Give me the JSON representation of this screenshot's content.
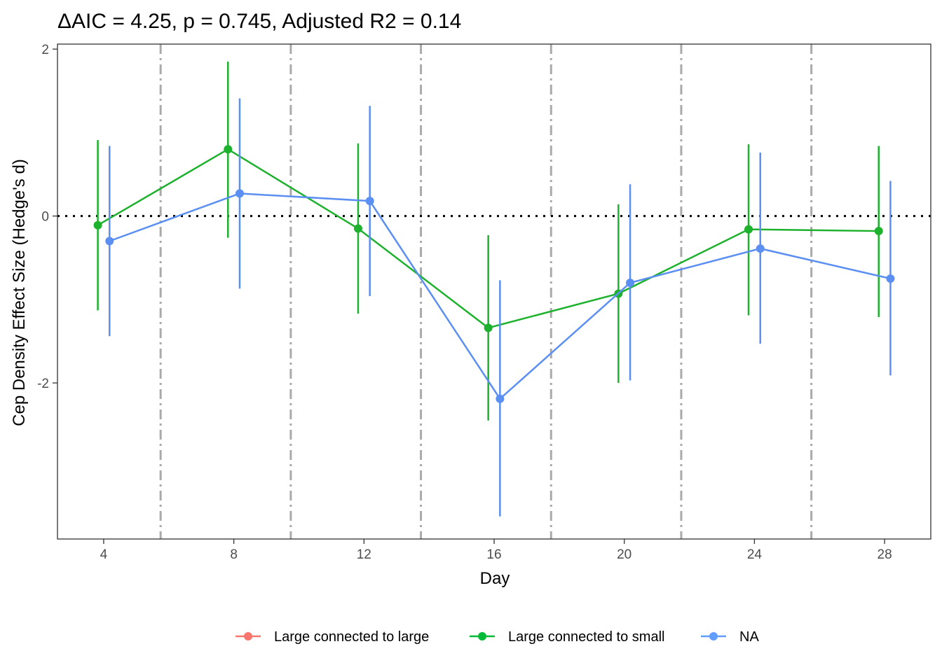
{
  "chart_data": {
    "type": "line",
    "title": "ΔAIC = 4.25, p = 0.745, Adjusted R2 = 0.14",
    "xlabel": "Day",
    "ylabel": "Cep Density Effect Size (Hedge's d)",
    "xlim": [
      2.58,
      29.42
    ],
    "ylim": [
      -3.87,
      2.06
    ],
    "x_ticks": [
      4,
      8,
      12,
      16,
      20,
      24,
      28
    ],
    "x_tick_labels": [
      "4",
      "8",
      "12",
      "16",
      "20",
      "24",
      "28"
    ],
    "y_ticks": [
      2,
      0,
      -2
    ],
    "y_tick_labels": [
      "2",
      "0",
      "-2"
    ],
    "reference_line": {
      "y": 0,
      "style": "dotted",
      "color": "#000000"
    },
    "vertical_lines": {
      "x": [
        5.75,
        9.75,
        13.75,
        17.75,
        21.75,
        25.75
      ],
      "style": "dashdot",
      "color": "#aaaaaa"
    },
    "grid": false,
    "legend_position": "bottom",
    "legend": [
      {
        "label": "Large connected to large",
        "color": "#F8766D"
      },
      {
        "label": "Large connected to small",
        "color": "#00BA38"
      },
      {
        "label": "NA",
        "color": "#619CFF"
      }
    ],
    "series": [
      {
        "name": "Large connected to small",
        "color": "#1db12d",
        "dodge": -0.18,
        "x": [
          4,
          8,
          12,
          16,
          20,
          24,
          28
        ],
        "y": [
          -0.11,
          0.8,
          -0.15,
          -1.34,
          -0.93,
          -0.16,
          -0.18
        ],
        "lower": [
          -1.13,
          -0.26,
          -1.17,
          -2.45,
          -2.0,
          -1.19,
          -1.21
        ],
        "upper": [
          0.91,
          1.85,
          0.87,
          -0.23,
          0.14,
          0.86,
          0.84
        ]
      },
      {
        "name": "NA",
        "color": "#5b8ff2",
        "dodge": 0.18,
        "x": [
          4,
          8,
          12,
          16,
          20,
          24,
          28
        ],
        "y": [
          -0.3,
          0.27,
          0.18,
          -2.19,
          -0.8,
          -0.39,
          -0.75
        ],
        "lower": [
          -1.44,
          -0.87,
          -0.96,
          -3.6,
          -1.97,
          -1.53,
          -1.91
        ],
        "upper": [
          0.84,
          1.41,
          1.32,
          -0.77,
          0.38,
          0.76,
          0.42
        ]
      }
    ]
  }
}
